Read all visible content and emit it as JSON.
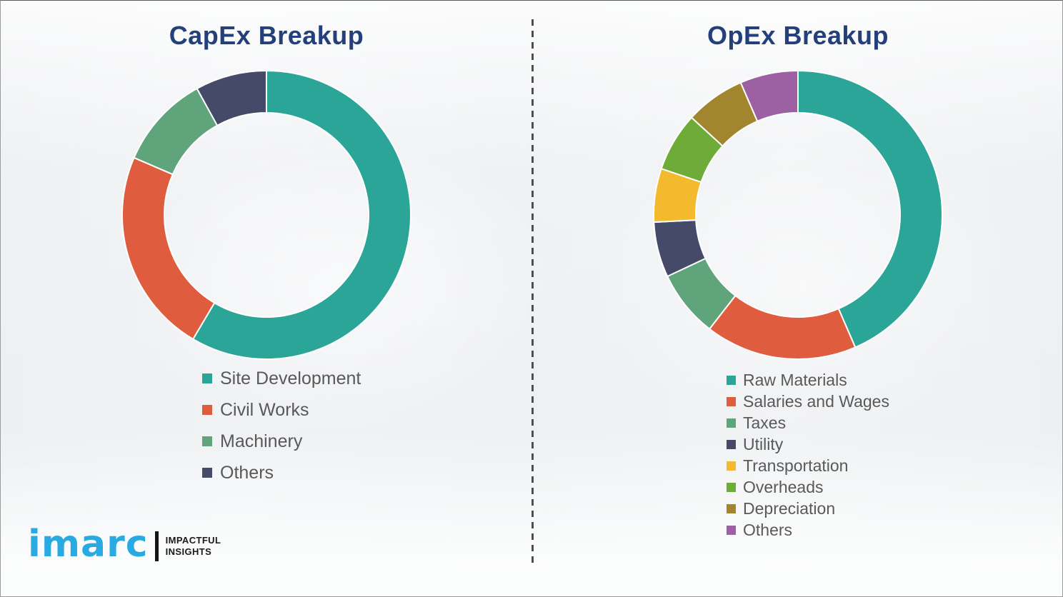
{
  "page": {
    "background_color": "#f2f3f4",
    "divider_color": "#4f4f4f",
    "title_color": "#24407b",
    "legend_text_color": "#595959"
  },
  "logo": {
    "brand": "imarc",
    "brand_color": "#29abe2",
    "tagline_line1": "IMPACTFUL",
    "tagline_line2": "INSIGHTS"
  },
  "chart_data": [
    {
      "type": "pie",
      "variant": "donut",
      "title": "CapEx Breakup",
      "categories": [
        "Site Development",
        "Civil Works",
        "Machinery",
        "Others"
      ],
      "values": [
        58.5,
        23,
        10.5,
        8
      ],
      "colors": [
        "#2ba597",
        "#df5c3e",
        "#5fa47b",
        "#454a69"
      ],
      "start_angle_deg": 0,
      "direction": "clockwise",
      "legend_position": "bottom-left",
      "units": "percent"
    },
    {
      "type": "pie",
      "variant": "donut",
      "title": "OpEx Breakup",
      "categories": [
        "Raw Materials",
        "Salaries and Wages",
        "Taxes",
        "Utility",
        "Transportation",
        "Overheads",
        "Depreciation",
        "Others"
      ],
      "values": [
        43.5,
        17,
        7.5,
        6.2,
        6,
        6.6,
        6.7,
        6.5
      ],
      "colors": [
        "#2ba597",
        "#df5c3e",
        "#5fa47b",
        "#454a69",
        "#f4ba2d",
        "#6fab38",
        "#a2862f",
        "#9d60a2"
      ],
      "start_angle_deg": 0,
      "direction": "clockwise",
      "legend_position": "bottom-left",
      "units": "percent"
    }
  ]
}
